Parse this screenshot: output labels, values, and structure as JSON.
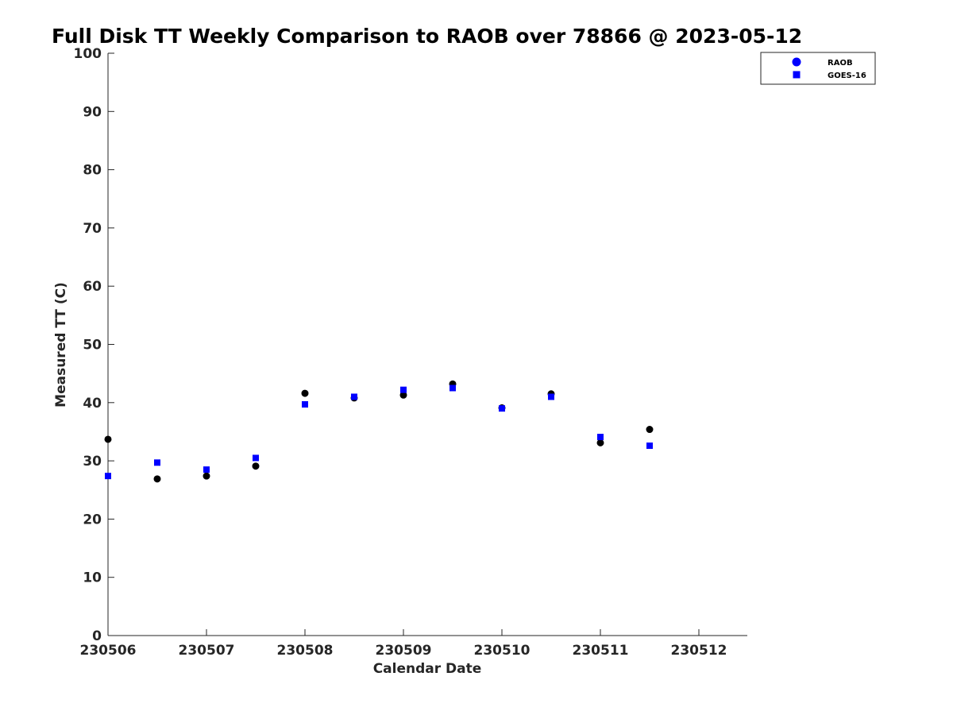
{
  "chart_data": {
    "type": "scatter",
    "title": "Full Disk TT Weekly Comparison to RAOB over 78866 @ 2023-05-12",
    "xlabel": "Calendar Date",
    "ylabel": "Measured TT (C)",
    "xlim": [
      230506,
      230512.5
    ],
    "ylim": [
      0,
      100
    ],
    "x_ticks": [
      {
        "value": 230506,
        "label": "230506"
      },
      {
        "value": 230507,
        "label": "230507"
      },
      {
        "value": 230508,
        "label": "230508"
      },
      {
        "value": 230509,
        "label": "230509"
      },
      {
        "value": 230510,
        "label": "230510"
      },
      {
        "value": 230511,
        "label": "230511"
      },
      {
        "value": 230512,
        "label": "230512"
      }
    ],
    "y_ticks": [
      {
        "value": 0,
        "label": "0"
      },
      {
        "value": 10,
        "label": "10"
      },
      {
        "value": 20,
        "label": "20"
      },
      {
        "value": 30,
        "label": "30"
      },
      {
        "value": 40,
        "label": "40"
      },
      {
        "value": 50,
        "label": "50"
      },
      {
        "value": 60,
        "label": "60"
      },
      {
        "value": 70,
        "label": "70"
      },
      {
        "value": 80,
        "label": "80"
      },
      {
        "value": 90,
        "label": "90"
      },
      {
        "value": 100,
        "label": "100"
      }
    ],
    "grid": false,
    "legend_position": "top-right, outside plot",
    "series": [
      {
        "name": "RAOB",
        "marker": "circle",
        "legend_color": "#0000ff",
        "marker_color": "#000000",
        "x": [
          230506.0,
          230506.5,
          230507.0,
          230507.5,
          230508.0,
          230508.5,
          230509.0,
          230509.5,
          230510.0,
          230510.5,
          230511.0,
          230511.5
        ],
        "y": [
          33.7,
          26.9,
          27.4,
          29.1,
          41.6,
          40.8,
          41.3,
          43.2,
          39.1,
          41.5,
          33.1,
          35.4
        ]
      },
      {
        "name": "GOES-16",
        "marker": "square",
        "legend_color": "#0000ff",
        "marker_color": "#0000ff",
        "x": [
          230506.0,
          230506.5,
          230507.0,
          230507.5,
          230508.0,
          230508.5,
          230509.0,
          230509.5,
          230510.0,
          230510.5,
          230511.0,
          230511.5
        ],
        "y": [
          27.4,
          29.7,
          28.5,
          30.5,
          39.7,
          41.0,
          42.2,
          42.5,
          39.0,
          41.0,
          34.1,
          32.6
        ]
      }
    ]
  }
}
